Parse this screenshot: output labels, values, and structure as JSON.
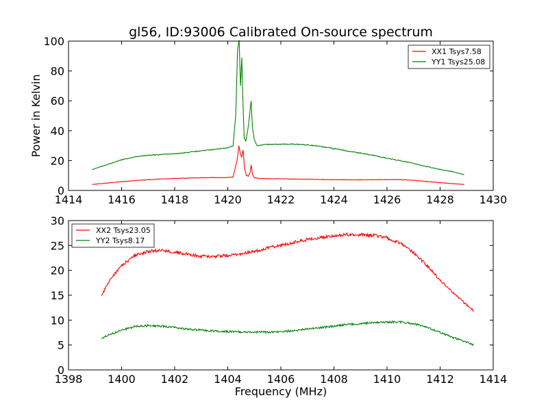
{
  "chart_data": [
    {
      "type": "line",
      "title": "gl56, ID:93006 Calibrated On-source spectrum",
      "xlabel": "",
      "ylabel": "Power in Kelvin",
      "xlim": [
        1414,
        1430
      ],
      "ylim": [
        0,
        100
      ],
      "xticks": [
        "1414",
        "1416",
        "1418",
        "1420",
        "1422",
        "1424",
        "1426",
        "1428",
        "1430"
      ],
      "yticks": [
        "0",
        "20",
        "40",
        "60",
        "80",
        "100"
      ],
      "legend_position": "top-right",
      "series": [
        {
          "name": "XX1 Tsys7.58",
          "color": "#ff0000",
          "x": [
            1414.9,
            1415.5,
            1416,
            1416.5,
            1417,
            1417.5,
            1418,
            1418.5,
            1419,
            1419.5,
            1420,
            1420.2,
            1420.35,
            1420.42,
            1420.47,
            1420.52,
            1420.58,
            1420.63,
            1420.7,
            1420.78,
            1420.84,
            1420.88,
            1420.93,
            1421,
            1421.2,
            1421.5,
            1422,
            1423,
            1424,
            1425,
            1426,
            1426.5,
            1427,
            1427.5,
            1428,
            1428.5,
            1428.9
          ],
          "y": [
            4,
            5,
            5.9,
            6.6,
            7.2,
            7.7,
            8,
            8.3,
            8.5,
            8.6,
            8.6,
            9,
            20,
            30,
            25,
            22,
            27,
            15,
            10,
            9.5,
            12,
            17,
            11,
            8.5,
            8,
            7.9,
            7.8,
            7.5,
            7.2,
            7.1,
            7.3,
            7.2,
            6.8,
            6,
            5.2,
            4.5,
            4
          ]
        },
        {
          "name": "YY1 Tsys25.08",
          "color": "#008000",
          "x": [
            1414.9,
            1415.5,
            1416,
            1416.5,
            1417,
            1417.5,
            1418,
            1418.5,
            1419,
            1419.5,
            1420,
            1420.2,
            1420.3,
            1420.37,
            1420.43,
            1420.48,
            1420.53,
            1420.57,
            1420.62,
            1420.68,
            1420.75,
            1420.82,
            1420.88,
            1420.93,
            1421,
            1421.1,
            1421.3,
            1421.5,
            1422,
            1422.5,
            1423,
            1423.5,
            1424,
            1424.5,
            1425,
            1425.5,
            1426,
            1426.5,
            1427,
            1427.5,
            1428,
            1428.5,
            1428.9
          ],
          "y": [
            14,
            17.5,
            20.5,
            22.5,
            23.5,
            24,
            24.5,
            25.5,
            26.5,
            27.5,
            28.5,
            30,
            50,
            95,
            100,
            70,
            89,
            60,
            35,
            33,
            40,
            50,
            60,
            42,
            34,
            30,
            30.5,
            30.8,
            31,
            31,
            30.5,
            29.5,
            28,
            26.5,
            25,
            23.5,
            21.5,
            20,
            18,
            16,
            14,
            12.5,
            10.5
          ]
        }
      ]
    },
    {
      "type": "line",
      "title": "",
      "xlabel": "Frequency (MHz)",
      "ylabel": "",
      "xlim": [
        1398,
        1414
      ],
      "ylim": [
        0,
        30
      ],
      "xticks": [
        "1398",
        "1400",
        "1402",
        "1404",
        "1406",
        "1408",
        "1410",
        "1412",
        "1414"
      ],
      "yticks": [
        "0",
        "5",
        "10",
        "15",
        "20",
        "25",
        "30"
      ],
      "legend_position": "top-left",
      "series": [
        {
          "name": "XX2 Tsys23.05",
          "color": "#ff0000",
          "x": [
            1399.25,
            1399.5,
            1400,
            1400.5,
            1401,
            1401.5,
            1402,
            1402.5,
            1403,
            1403.5,
            1404,
            1404.5,
            1405,
            1405.5,
            1406,
            1406.5,
            1407,
            1407.5,
            1408,
            1408.5,
            1409,
            1409.5,
            1410,
            1410.5,
            1411,
            1411.5,
            1412,
            1412.5,
            1413,
            1413.25
          ],
          "y": [
            15,
            17.5,
            21,
            23,
            23.8,
            24,
            23.7,
            23.2,
            22.8,
            22.8,
            23,
            23.3,
            23.8,
            24.5,
            25,
            25.6,
            26.2,
            26.6,
            27,
            27.2,
            27.2,
            27,
            26.5,
            25.5,
            23.5,
            21,
            18,
            15.5,
            13,
            12
          ]
        },
        {
          "name": "YY2 Tsys8.17",
          "color": "#008000",
          "x": [
            1399.25,
            1399.5,
            1400,
            1400.5,
            1401,
            1401.5,
            1402,
            1402.5,
            1403,
            1403.5,
            1404,
            1404.5,
            1405,
            1405.5,
            1406,
            1406.5,
            1407,
            1407.5,
            1408,
            1408.5,
            1409,
            1409.5,
            1410,
            1410.5,
            1411,
            1411.5,
            1412,
            1412.5,
            1413,
            1413.25
          ],
          "y": [
            6.3,
            7,
            8,
            8.7,
            8.9,
            8.8,
            8.5,
            8.2,
            8,
            7.8,
            7.7,
            7.6,
            7.6,
            7.6,
            7.7,
            7.9,
            8.2,
            8.5,
            8.8,
            9.1,
            9.3,
            9.5,
            9.6,
            9.6,
            9.3,
            8.6,
            7.5,
            6.5,
            5.6,
            5
          ]
        }
      ]
    }
  ]
}
